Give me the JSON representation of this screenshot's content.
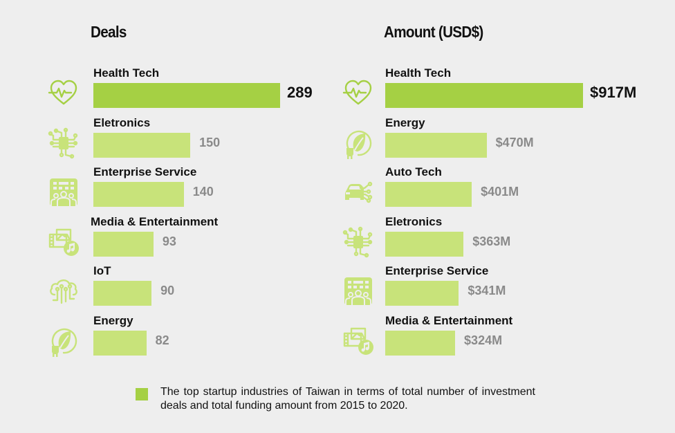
{
  "colors": {
    "background": "#eeeeee",
    "bar_top": "#a5d044",
    "bar_other": "#c8e37a",
    "icon": "#a5d044",
    "icon_light": "#c8e37a",
    "value_top": "#111111",
    "value_other": "#8a8a8a"
  },
  "chart_data": [
    {
      "type": "bar",
      "orientation": "horizontal",
      "title": "Deals",
      "xlabel": "",
      "ylabel": "",
      "grid": false,
      "xlim": [
        0,
        289
      ],
      "categories": [
        "Health Tech",
        "Eletronics",
        "Enterprise Service",
        "Media & Entertainment",
        "IoT",
        "Energy"
      ],
      "values": [
        289,
        150,
        140,
        93,
        90,
        82
      ],
      "value_labels": [
        "289",
        "150",
        "140",
        "93",
        "90",
        "82"
      ],
      "icons": [
        "heart-pulse-icon",
        "circuit-chip-icon",
        "enterprise-team-icon",
        "media-music-icon",
        "iot-cloud-icon",
        "energy-leaf-plug-icon"
      ]
    },
    {
      "type": "bar",
      "orientation": "horizontal",
      "title": "Amount (USD$)",
      "xlabel": "",
      "ylabel": "",
      "grid": false,
      "xlim": [
        0,
        917
      ],
      "unit": "USD millions",
      "categories": [
        "Health Tech",
        "Energy",
        "Auto Tech",
        "Eletronics",
        "Enterprise Service",
        "Media & Entertainment"
      ],
      "values": [
        917,
        470,
        401,
        363,
        341,
        324
      ],
      "value_labels": [
        "$917M",
        "$470M",
        "$401M",
        "$363M",
        "$341M",
        "$324M"
      ],
      "icons": [
        "heart-pulse-icon",
        "energy-leaf-plug-icon",
        "auto-tech-car-icon",
        "circuit-chip-icon",
        "enterprise-team-icon",
        "media-music-icon"
      ]
    }
  ],
  "legend": {
    "text": "The top startup industries of Taiwan in terms of total number of investment deals and total funding amount from 2015 to 2020."
  }
}
